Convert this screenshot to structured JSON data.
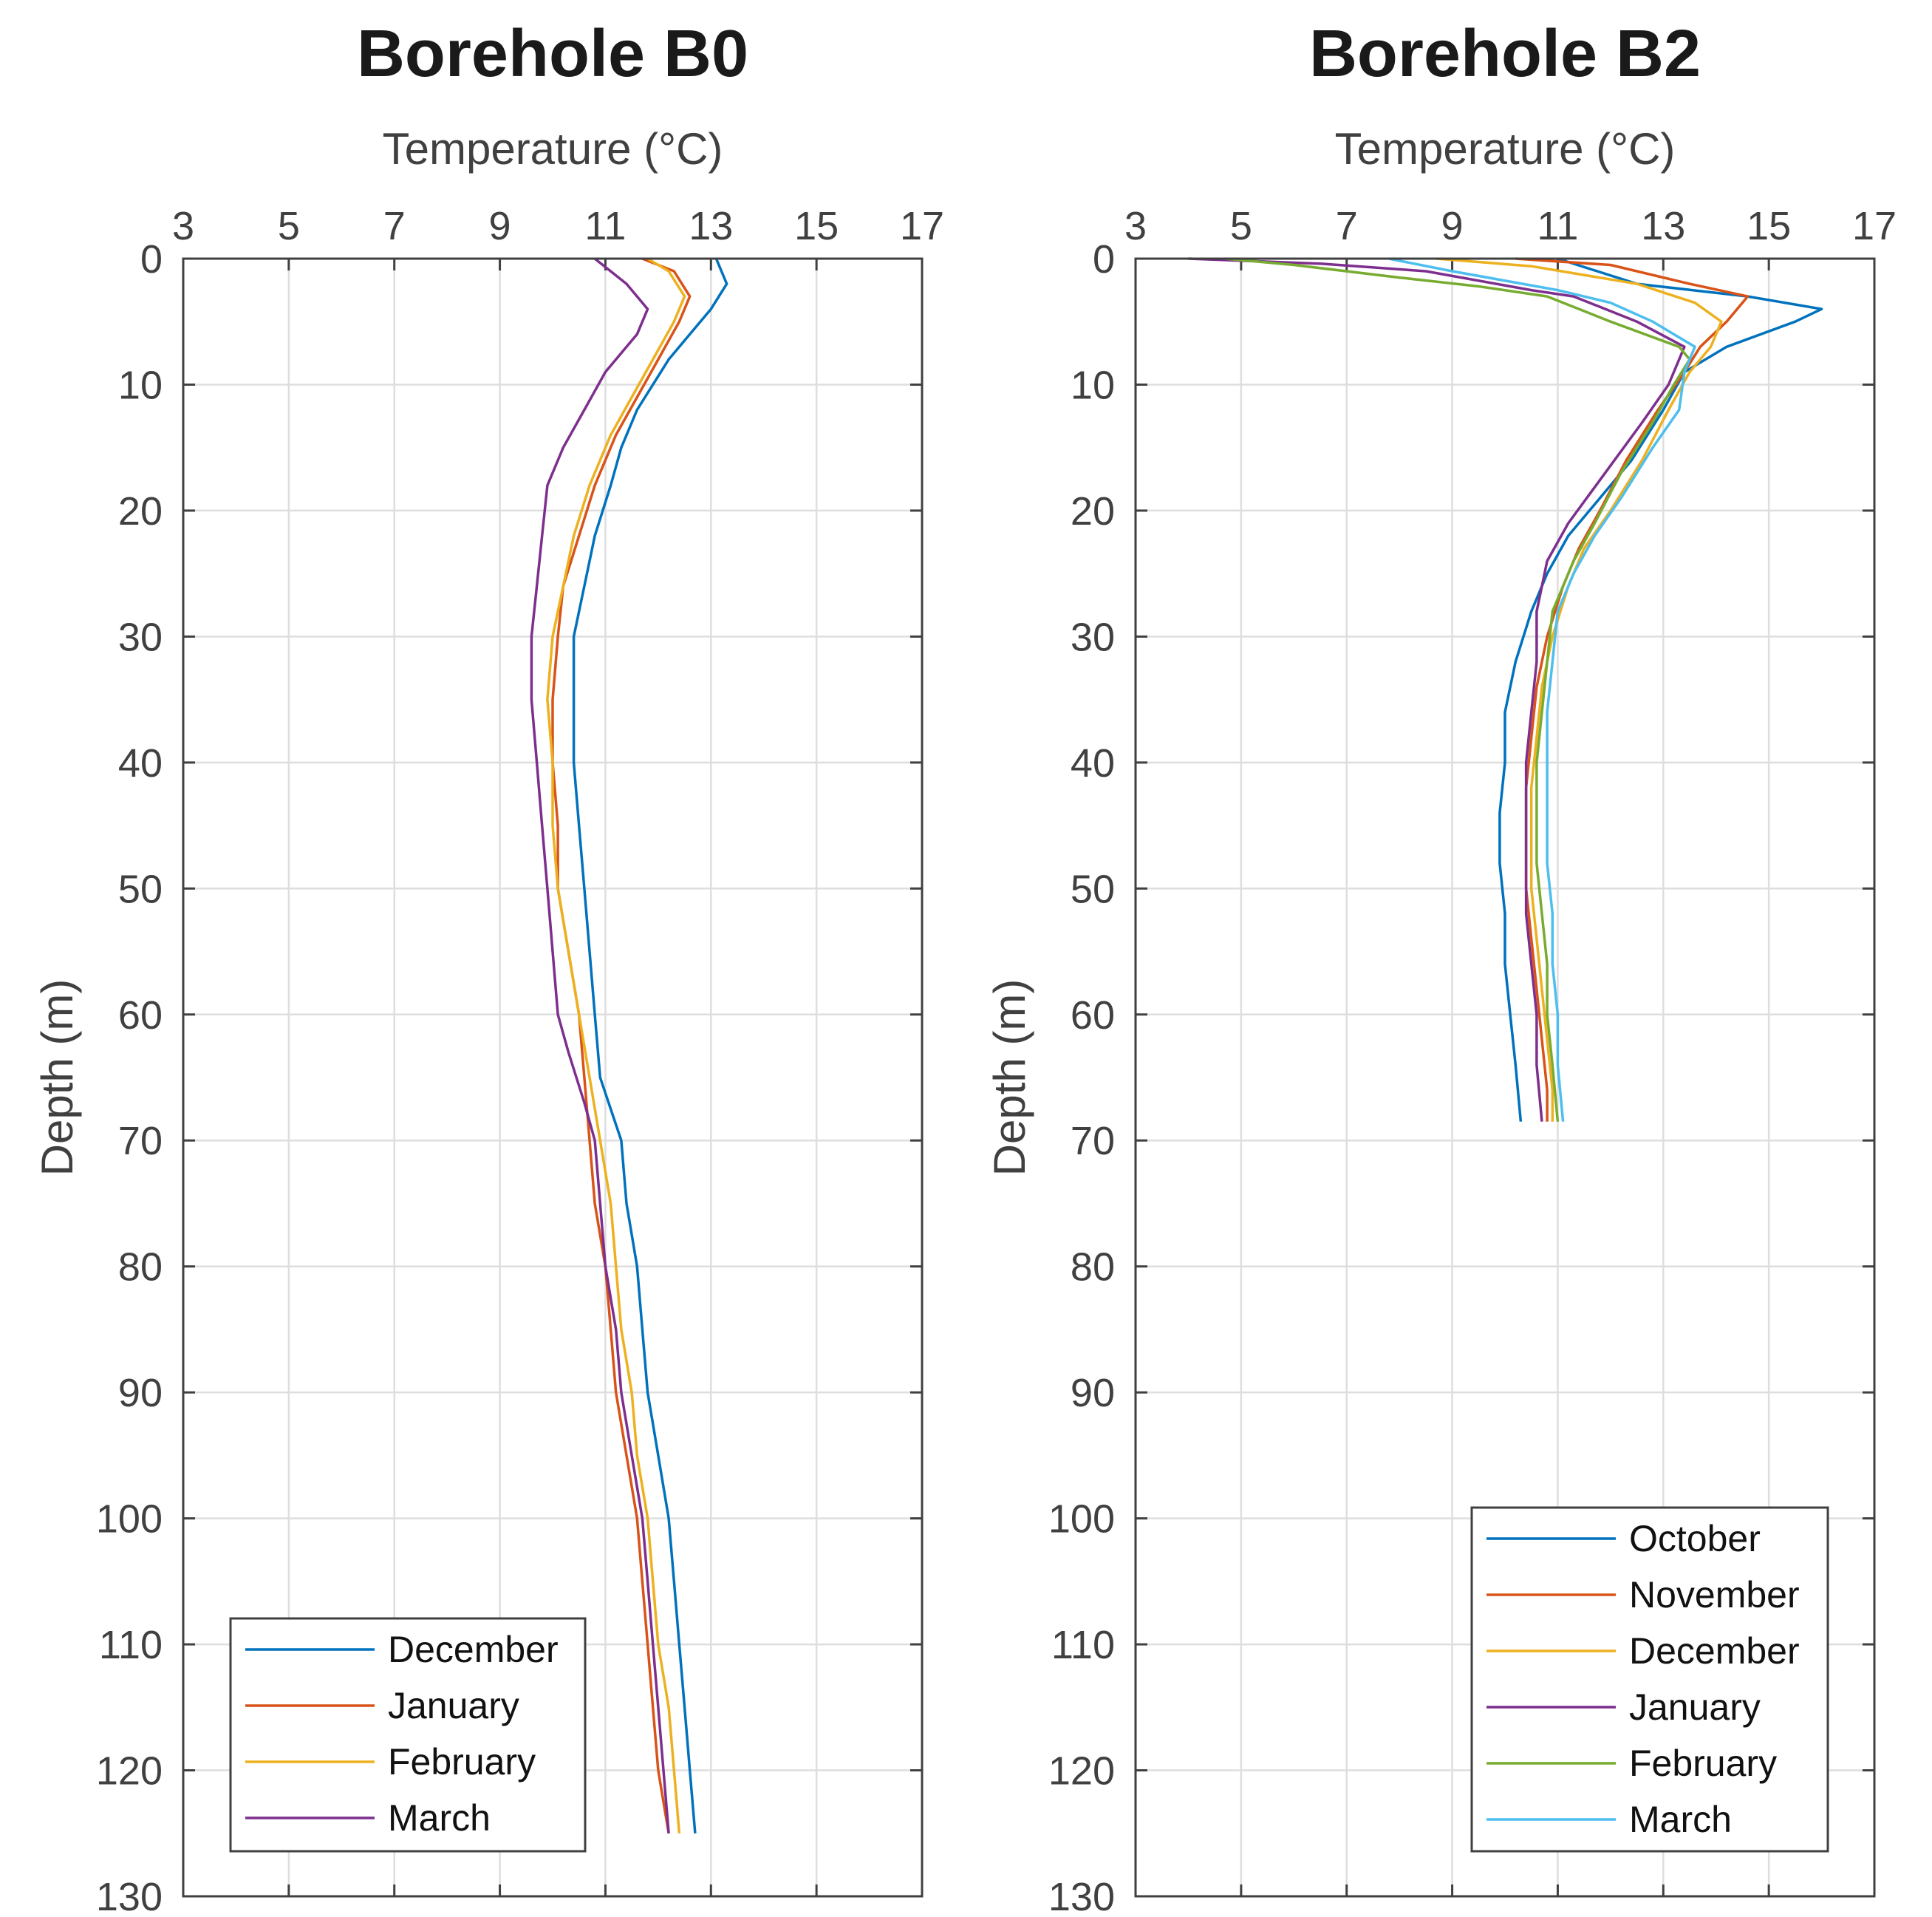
{
  "chart_data": [
    {
      "type": "line",
      "title": "Borehole B0",
      "xlabel": "Temperature (°C)",
      "ylabel": "Depth (m)",
      "xlim": [
        3,
        17
      ],
      "ylim": [
        0,
        130
      ],
      "y_reversed": true,
      "x_axis_position": "top",
      "xticks": [
        "3",
        "5",
        "7",
        "9",
        "11",
        "13",
        "15",
        "17"
      ],
      "yticks": [
        "0",
        "10",
        "20",
        "30",
        "40",
        "50",
        "60",
        "70",
        "80",
        "90",
        "100",
        "110",
        "120",
        "130"
      ],
      "grid": true,
      "legend_position": "bottom-left",
      "series": [
        {
          "name": "December",
          "color": "#0072BD",
          "points": [
            [
              13.1,
              0
            ],
            [
              13.3,
              2
            ],
            [
              13.0,
              4
            ],
            [
              12.6,
              6
            ],
            [
              12.2,
              8
            ],
            [
              11.9,
              10
            ],
            [
              11.6,
              12
            ],
            [
              11.3,
              15
            ],
            [
              11.1,
              18
            ],
            [
              10.8,
              22
            ],
            [
              10.6,
              26
            ],
            [
              10.4,
              30
            ],
            [
              10.4,
              35
            ],
            [
              10.4,
              40
            ],
            [
              10.5,
              45
            ],
            [
              10.6,
              50
            ],
            [
              10.7,
              55
            ],
            [
              10.8,
              60
            ],
            [
              10.9,
              65
            ],
            [
              11.3,
              70
            ],
            [
              11.4,
              75
            ],
            [
              11.6,
              80
            ],
            [
              11.7,
              85
            ],
            [
              11.8,
              90
            ],
            [
              12.0,
              95
            ],
            [
              12.2,
              100
            ],
            [
              12.3,
              105
            ],
            [
              12.4,
              110
            ],
            [
              12.5,
              115
            ],
            [
              12.6,
              120
            ],
            [
              12.7,
              125
            ]
          ]
        },
        {
          "name": "January",
          "color": "#D95319",
          "points": [
            [
              11.7,
              0
            ],
            [
              12.3,
              1
            ],
            [
              12.6,
              3
            ],
            [
              12.4,
              5
            ],
            [
              12.0,
              8
            ],
            [
              11.6,
              11
            ],
            [
              11.2,
              14
            ],
            [
              10.8,
              18
            ],
            [
              10.5,
              22
            ],
            [
              10.2,
              26
            ],
            [
              10.1,
              30
            ],
            [
              10.0,
              35
            ],
            [
              10.0,
              40
            ],
            [
              10.1,
              45
            ],
            [
              10.1,
              50
            ],
            [
              10.3,
              55
            ],
            [
              10.5,
              60
            ],
            [
              10.6,
              65
            ],
            [
              10.7,
              70
            ],
            [
              10.8,
              75
            ],
            [
              11.0,
              80
            ],
            [
              11.1,
              85
            ],
            [
              11.2,
              90
            ],
            [
              11.4,
              95
            ],
            [
              11.6,
              100
            ],
            [
              11.7,
              105
            ],
            [
              11.8,
              110
            ],
            [
              11.9,
              115
            ],
            [
              12.0,
              120
            ],
            [
              12.2,
              125
            ]
          ]
        },
        {
          "name": "February",
          "color": "#EDB120",
          "points": [
            [
              11.8,
              0
            ],
            [
              12.2,
              1
            ],
            [
              12.5,
              3
            ],
            [
              12.3,
              5
            ],
            [
              11.9,
              8
            ],
            [
              11.5,
              11
            ],
            [
              11.1,
              14
            ],
            [
              10.7,
              18
            ],
            [
              10.4,
              22
            ],
            [
              10.2,
              26
            ],
            [
              10.0,
              30
            ],
            [
              9.9,
              35
            ],
            [
              10.0,
              40
            ],
            [
              10.0,
              45
            ],
            [
              10.1,
              50
            ],
            [
              10.3,
              55
            ],
            [
              10.5,
              60
            ],
            [
              10.7,
              65
            ],
            [
              10.9,
              70
            ],
            [
              11.1,
              75
            ],
            [
              11.2,
              80
            ],
            [
              11.3,
              85
            ],
            [
              11.5,
              90
            ],
            [
              11.6,
              95
            ],
            [
              11.8,
              100
            ],
            [
              11.9,
              105
            ],
            [
              12.0,
              110
            ],
            [
              12.2,
              115
            ],
            [
              12.3,
              120
            ],
            [
              12.4,
              125
            ]
          ]
        },
        {
          "name": "March",
          "color": "#7E2F8E",
          "points": [
            [
              10.8,
              0
            ],
            [
              11.4,
              2
            ],
            [
              11.8,
              4
            ],
            [
              11.6,
              6
            ],
            [
              11.0,
              9
            ],
            [
              10.6,
              12
            ],
            [
              10.2,
              15
            ],
            [
              9.9,
              18
            ],
            [
              9.8,
              22
            ],
            [
              9.7,
              26
            ],
            [
              9.6,
              30
            ],
            [
              9.6,
              35
            ],
            [
              9.7,
              40
            ],
            [
              9.8,
              45
            ],
            [
              9.9,
              50
            ],
            [
              10.0,
              55
            ],
            [
              10.1,
              60
            ],
            [
              10.3,
              63
            ],
            [
              10.6,
              67
            ],
            [
              10.8,
              70
            ],
            [
              10.9,
              75
            ],
            [
              11.0,
              80
            ],
            [
              11.2,
              85
            ],
            [
              11.3,
              90
            ],
            [
              11.5,
              95
            ],
            [
              11.7,
              100
            ],
            [
              11.8,
              105
            ],
            [
              11.9,
              110
            ],
            [
              12.0,
              115
            ],
            [
              12.1,
              120
            ],
            [
              12.2,
              125
            ]
          ]
        }
      ]
    },
    {
      "type": "line",
      "title": "Borehole B2",
      "xlabel": "Temperature (°C)",
      "ylabel": "Depth (m)",
      "xlim": [
        3,
        17
      ],
      "ylim": [
        0,
        130
      ],
      "y_reversed": true,
      "x_axis_position": "top",
      "xticks": [
        "3",
        "5",
        "7",
        "9",
        "11",
        "13",
        "15",
        "17"
      ],
      "yticks": [
        "0",
        "10",
        "20",
        "30",
        "40",
        "50",
        "60",
        "70",
        "80",
        "90",
        "100",
        "110",
        "120",
        "130"
      ],
      "grid": true,
      "legend_position": "bottom-right",
      "series": [
        {
          "name": "October",
          "color": "#0072BD",
          "points": [
            [
              11.0,
              0
            ],
            [
              12.5,
              2
            ],
            [
              14.6,
              3
            ],
            [
              16.0,
              4
            ],
            [
              15.5,
              5
            ],
            [
              14.2,
              7
            ],
            [
              13.4,
              9
            ],
            [
              13.0,
              12
            ],
            [
              12.4,
              16
            ],
            [
              11.8,
              19
            ],
            [
              11.2,
              22
            ],
            [
              10.8,
              25
            ],
            [
              10.5,
              28
            ],
            [
              10.2,
              32
            ],
            [
              10.0,
              36
            ],
            [
              10.0,
              40
            ],
            [
              9.9,
              44
            ],
            [
              9.9,
              48
            ],
            [
              10.0,
              52
            ],
            [
              10.0,
              56
            ],
            [
              10.1,
              60
            ],
            [
              10.2,
              64
            ],
            [
              10.3,
              68.5
            ]
          ]
        },
        {
          "name": "November",
          "color": "#D95319",
          "points": [
            [
              10.2,
              0
            ],
            [
              12.0,
              0.5
            ],
            [
              13.5,
              2
            ],
            [
              14.6,
              3
            ],
            [
              14.2,
              5
            ],
            [
              13.7,
              7
            ],
            [
              13.4,
              9
            ],
            [
              12.9,
              12
            ],
            [
              12.3,
              16
            ],
            [
              11.8,
              20
            ],
            [
              11.4,
              23
            ],
            [
              11.1,
              26
            ],
            [
              10.8,
              30
            ],
            [
              10.6,
              34
            ],
            [
              10.5,
              38
            ],
            [
              10.4,
              42
            ],
            [
              10.4,
              46
            ],
            [
              10.4,
              50
            ],
            [
              10.5,
              54
            ],
            [
              10.6,
              58
            ],
            [
              10.7,
              62
            ],
            [
              10.8,
              66
            ],
            [
              10.8,
              68.5
            ]
          ]
        },
        {
          "name": "December",
          "color": "#EDB120",
          "points": [
            [
              8.7,
              0
            ],
            [
              10.5,
              0.6
            ],
            [
              12.5,
              2
            ],
            [
              13.6,
              3.5
            ],
            [
              14.1,
              5
            ],
            [
              13.9,
              7
            ],
            [
              13.5,
              9
            ],
            [
              13.1,
              12
            ],
            [
              12.6,
              16
            ],
            [
              12.0,
              20
            ],
            [
              11.5,
              23
            ],
            [
              11.2,
              26
            ],
            [
              10.9,
              30
            ],
            [
              10.7,
              34
            ],
            [
              10.6,
              38
            ],
            [
              10.5,
              42
            ],
            [
              10.5,
              46
            ],
            [
              10.5,
              50
            ],
            [
              10.6,
              54
            ],
            [
              10.7,
              58
            ],
            [
              10.8,
              62
            ],
            [
              10.9,
              66
            ],
            [
              10.9,
              68.5
            ]
          ]
        },
        {
          "name": "January",
          "color": "#7E2F8E",
          "points": [
            [
              4.0,
              0
            ],
            [
              6.5,
              0.4
            ],
            [
              8.5,
              1
            ],
            [
              10.5,
              2.5
            ],
            [
              11.3,
              3
            ],
            [
              12.5,
              5
            ],
            [
              13.4,
              7
            ],
            [
              13.1,
              10
            ],
            [
              12.6,
              13
            ],
            [
              11.9,
              17
            ],
            [
              11.2,
              21
            ],
            [
              10.8,
              24
            ],
            [
              10.6,
              28
            ],
            [
              10.6,
              32
            ],
            [
              10.5,
              36
            ],
            [
              10.4,
              40
            ],
            [
              10.4,
              44
            ],
            [
              10.4,
              48
            ],
            [
              10.4,
              52
            ],
            [
              10.5,
              56
            ],
            [
              10.6,
              60
            ],
            [
              10.6,
              64
            ],
            [
              10.7,
              68.5
            ]
          ]
        },
        {
          "name": "February",
          "color": "#77AC30",
          "points": [
            [
              4.7,
              0
            ],
            [
              6.0,
              0.5
            ],
            [
              8.0,
              1.5
            ],
            [
              9.5,
              2.2
            ],
            [
              10.8,
              3
            ],
            [
              12.0,
              5
            ],
            [
              13.3,
              7
            ],
            [
              13.5,
              8
            ],
            [
              13.2,
              10
            ],
            [
              12.8,
              13
            ],
            [
              12.2,
              17
            ],
            [
              11.7,
              21
            ],
            [
              11.3,
              24
            ],
            [
              10.9,
              28
            ],
            [
              10.8,
              32
            ],
            [
              10.7,
              36
            ],
            [
              10.6,
              40
            ],
            [
              10.6,
              44
            ],
            [
              10.6,
              48
            ],
            [
              10.7,
              52
            ],
            [
              10.8,
              56
            ],
            [
              10.8,
              60
            ],
            [
              10.9,
              64
            ],
            [
              11.0,
              68.5
            ]
          ]
        },
        {
          "name": "March",
          "color": "#4DBEEE",
          "points": [
            [
              7.8,
              0
            ],
            [
              9.0,
              1
            ],
            [
              11.0,
              2.5
            ],
            [
              12.0,
              3.5
            ],
            [
              12.8,
              5
            ],
            [
              13.6,
              7
            ],
            [
              13.4,
              9
            ],
            [
              13.3,
              12
            ],
            [
              12.8,
              15
            ],
            [
              12.2,
              19
            ],
            [
              11.7,
              22
            ],
            [
              11.3,
              25
            ],
            [
              11.0,
              28
            ],
            [
              10.9,
              32
            ],
            [
              10.8,
              36
            ],
            [
              10.8,
              40
            ],
            [
              10.8,
              44
            ],
            [
              10.8,
              48
            ],
            [
              10.9,
              52
            ],
            [
              10.9,
              56
            ],
            [
              11.0,
              60
            ],
            [
              11.0,
              64
            ],
            [
              11.1,
              68.5
            ]
          ]
        }
      ]
    }
  ]
}
